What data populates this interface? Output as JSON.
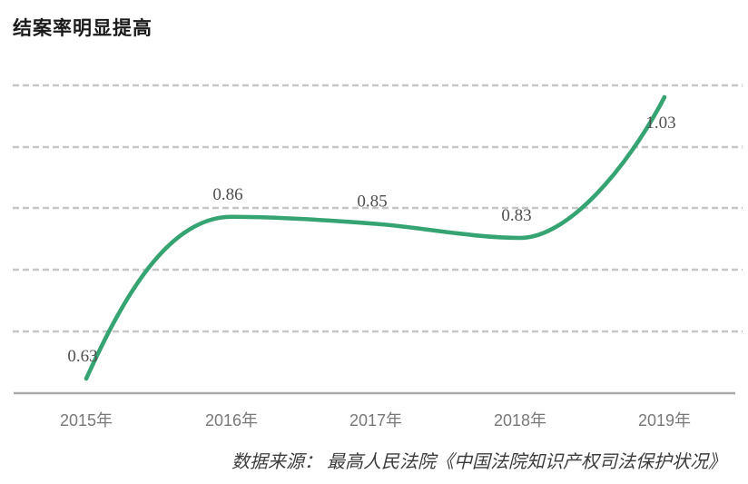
{
  "header": {
    "title": "结案率明显提高"
  },
  "chart_data": {
    "type": "line",
    "title": "结案率明显提高",
    "categories": [
      "2015年",
      "2016年",
      "2017年",
      "2018年",
      "2019年"
    ],
    "values": [
      0.63,
      0.86,
      0.85,
      0.83,
      1.03
    ],
    "point_labels": [
      "0.63",
      "0.86",
      "0.85",
      "0.83",
      "1.03"
    ],
    "xlabel": "",
    "ylabel": "",
    "ylim": [
      0.6,
      1.06
    ],
    "grid": "horizontal-dashed",
    "legend": "none",
    "line_color": "#35a372"
  },
  "source": {
    "text": "数据来源： 最高人民法院《中国法院知识产权司法保护状况》"
  },
  "colors": {
    "accent_green": "#35a372",
    "gridline": "#c6c6c6",
    "axis_line": "#a9a9a9",
    "value_label": "#4f4f4f",
    "tick_label": "#787878",
    "title_text": "#1b1b1b"
  }
}
